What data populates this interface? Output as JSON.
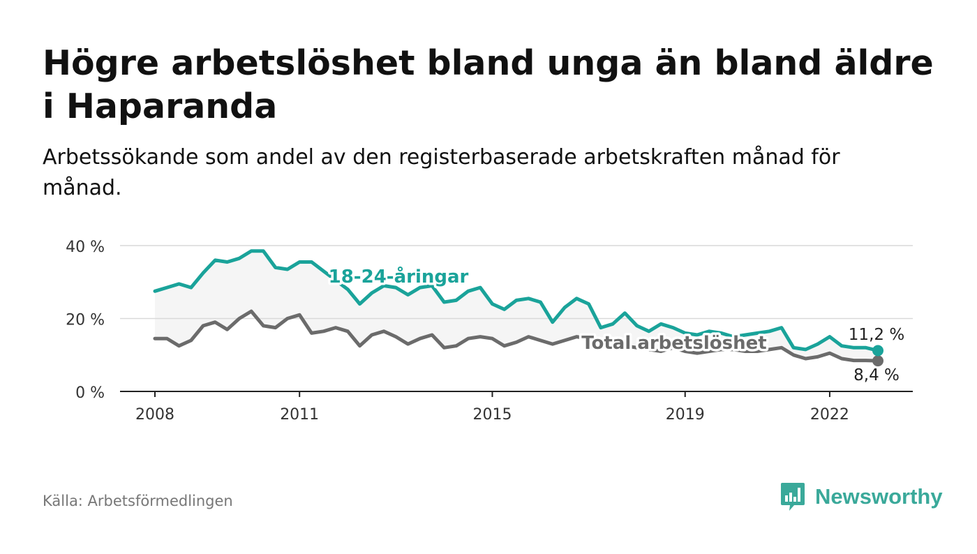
{
  "title": "Högre arbetslöshet bland unga än bland äldre i Haparanda",
  "subtitle": "Arbetssökande som andel av den registerbaserade arbetskraften månad för månad.",
  "source": "Källa: Arbetsförmedlingen",
  "brand": {
    "name": "Newsworthy",
    "logo_icon": "newsworthy-logo-icon"
  },
  "colors": {
    "youth": "#1aa39a",
    "total": "#6b6b6b",
    "band": "#f1f1f1",
    "grid": "#d9d9d9",
    "axis": "#222222"
  },
  "chart_data": {
    "type": "line",
    "title": "Högre arbetslöshet bland unga än bland äldre i Haparanda",
    "xlabel": "",
    "ylabel": "",
    "xlim": [
      2008.0,
      2023.5
    ],
    "ylim": [
      0,
      40
    ],
    "y_ticks": [
      0,
      20,
      40
    ],
    "y_tick_labels": [
      "0 %",
      "20 %",
      "40 %"
    ],
    "x_ticks": [
      2008,
      2011,
      2015,
      2019,
      2022
    ],
    "x_tick_labels": [
      "2008",
      "2011",
      "2015",
      "2019",
      "2022"
    ],
    "grid": true,
    "series": [
      {
        "name": "18-24-åringar",
        "label": "18-24-åringar",
        "end_label": "11,2 %",
        "end_value": 11.2,
        "x": [
          2008.0,
          2008.25,
          2008.5,
          2008.75,
          2009.0,
          2009.25,
          2009.5,
          2009.75,
          2010.0,
          2010.25,
          2010.5,
          2010.75,
          2011.0,
          2011.25,
          2011.5,
          2011.75,
          2012.0,
          2012.25,
          2012.5,
          2012.75,
          2013.0,
          2013.25,
          2013.5,
          2013.75,
          2014.0,
          2014.25,
          2014.5,
          2014.75,
          2015.0,
          2015.25,
          2015.5,
          2015.75,
          2016.0,
          2016.25,
          2016.5,
          2016.75,
          2017.0,
          2017.25,
          2017.5,
          2017.75,
          2018.0,
          2018.25,
          2018.5,
          2018.75,
          2019.0,
          2019.25,
          2019.5,
          2019.75,
          2020.0,
          2020.25,
          2020.5,
          2020.75,
          2021.0,
          2021.25,
          2021.5,
          2021.75,
          2022.0,
          2022.25,
          2022.5,
          2022.75,
          2023.0
        ],
        "values": [
          27.5,
          28.5,
          29.5,
          28.5,
          32.5,
          36.0,
          35.5,
          36.5,
          38.5,
          38.5,
          34.0,
          33.5,
          35.5,
          35.5,
          33.0,
          30.5,
          28.0,
          24.0,
          27.0,
          29.0,
          28.5,
          26.5,
          28.5,
          29.0,
          24.5,
          25.0,
          27.5,
          28.5,
          24.0,
          22.5,
          25.0,
          25.5,
          24.5,
          19.0,
          23.0,
          25.5,
          24.0,
          17.5,
          18.5,
          21.5,
          18.0,
          16.5,
          18.5,
          17.5,
          16.0,
          15.5,
          16.5,
          16.0,
          15.0,
          15.5,
          16.0,
          16.5,
          17.5,
          12.0,
          11.5,
          13.0,
          15.0,
          12.5,
          12.0,
          12.0,
          11.2
        ]
      },
      {
        "name": "Total arbetslöshet",
        "label": "Total arbetslöshet",
        "end_label": "8,4 %",
        "end_value": 8.4,
        "x": [
          2008.0,
          2008.25,
          2008.5,
          2008.75,
          2009.0,
          2009.25,
          2009.5,
          2009.75,
          2010.0,
          2010.25,
          2010.5,
          2010.75,
          2011.0,
          2011.25,
          2011.5,
          2011.75,
          2012.0,
          2012.25,
          2012.5,
          2012.75,
          2013.0,
          2013.25,
          2013.5,
          2013.75,
          2014.0,
          2014.25,
          2014.5,
          2014.75,
          2015.0,
          2015.25,
          2015.5,
          2015.75,
          2016.0,
          2016.25,
          2016.5,
          2016.75,
          2017.0,
          2017.25,
          2017.5,
          2017.75,
          2018.0,
          2018.25,
          2018.5,
          2018.75,
          2019.0,
          2019.25,
          2019.5,
          2019.75,
          2020.0,
          2020.25,
          2020.5,
          2020.75,
          2021.0,
          2021.25,
          2021.5,
          2021.75,
          2022.0,
          2022.25,
          2022.5,
          2022.75,
          2023.0
        ],
        "values": [
          14.5,
          14.5,
          12.5,
          14.0,
          18.0,
          19.0,
          17.0,
          20.0,
          22.0,
          18.0,
          17.5,
          20.0,
          21.0,
          16.0,
          16.5,
          17.5,
          16.5,
          12.5,
          15.5,
          16.5,
          15.0,
          13.0,
          14.5,
          15.5,
          12.0,
          12.5,
          14.5,
          15.0,
          14.5,
          12.5,
          13.5,
          15.0,
          14.0,
          13.0,
          14.0,
          15.0,
          14.5,
          13.5,
          13.0,
          12.5,
          12.0,
          11.5,
          11.0,
          12.0,
          11.0,
          10.5,
          11.0,
          11.5,
          11.5,
          11.0,
          11.0,
          11.5,
          12.0,
          10.0,
          9.0,
          9.5,
          10.5,
          9.0,
          8.5,
          8.5,
          8.4
        ]
      }
    ]
  }
}
